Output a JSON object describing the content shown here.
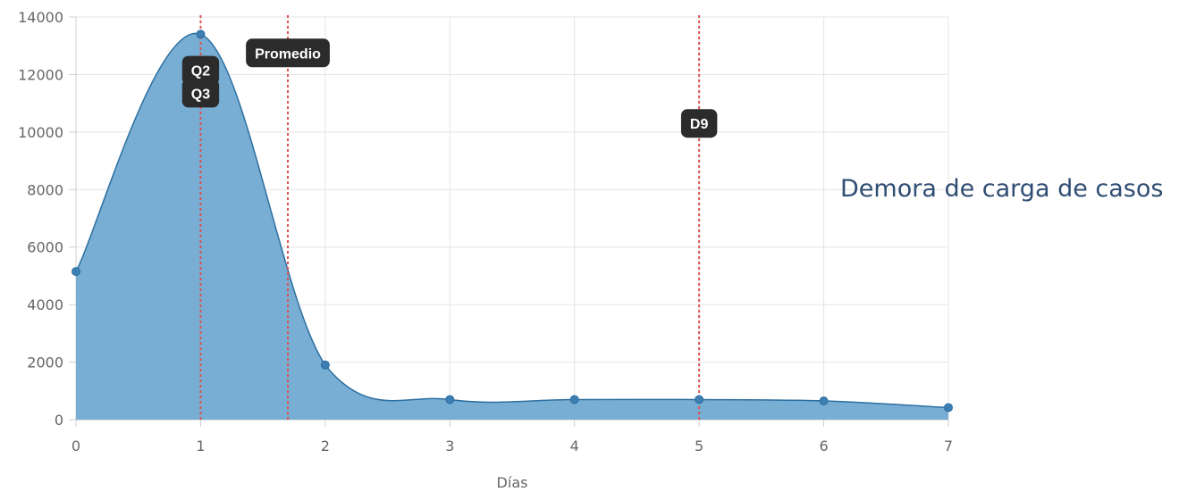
{
  "side_title": "Demora de carga de casos",
  "chart_data": {
    "type": "area",
    "xlabel": "Días",
    "ylabel": "",
    "x": [
      0,
      1,
      2,
      3,
      4,
      5,
      6,
      7
    ],
    "series": [
      {
        "values": [
          5150,
          13400,
          1900,
          700,
          700,
          700,
          650,
          420
        ],
        "color": "#3d7fb2"
      }
    ],
    "xlim": [
      0,
      7
    ],
    "ylim": [
      0,
      14000
    ],
    "yticks": [
      0,
      2000,
      4000,
      6000,
      8000,
      10000,
      12000,
      14000
    ],
    "xticks": [
      0,
      1,
      2,
      3,
      4,
      5,
      6,
      7
    ],
    "grid": true,
    "annotations": [
      {
        "label": "Q2",
        "x": 1,
        "badge_y": 12150
      },
      {
        "label": "Q3",
        "x": 1,
        "badge_y": 11350
      },
      {
        "label": "Promedio",
        "x": 1.7,
        "badge_y": 12750
      },
      {
        "label": "D9",
        "x": 5,
        "badge_y": 10300
      }
    ],
    "reference_lines": [
      1,
      1.7,
      5
    ],
    "colors": {
      "fill": "#78aed3",
      "line": "#2d6fa0",
      "reference": "#e05050",
      "badge": "#2b2b2b"
    }
  }
}
